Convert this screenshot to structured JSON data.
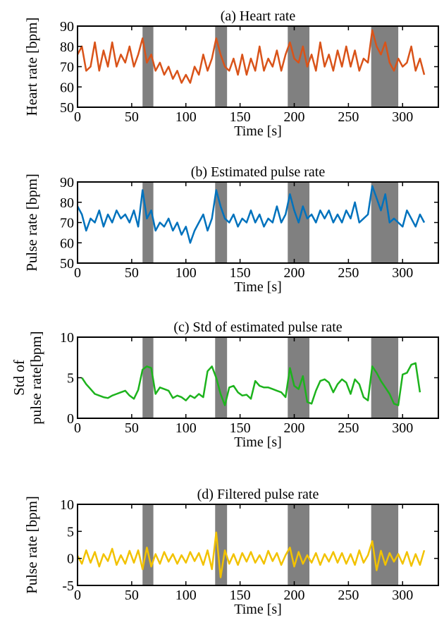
{
  "chart_data": [
    {
      "type": "line",
      "title": "(a) Heart rate",
      "xlabel": "Time [s]",
      "ylabel": "Heart rate [bpm]",
      "xlim": [
        0,
        333
      ],
      "xticks": [
        0,
        50,
        100,
        150,
        200,
        250,
        300
      ],
      "ylim": [
        50,
        90
      ],
      "yticks": [
        50,
        60,
        70,
        80,
        90
      ],
      "shaded_regions": [
        [
          60,
          70
        ],
        [
          127,
          138
        ],
        [
          194,
          214
        ],
        [
          271,
          296
        ]
      ],
      "shade_color": "#808080",
      "x": [
        0,
        4,
        8,
        12,
        16,
        20,
        24,
        28,
        32,
        36,
        40,
        44,
        48,
        52,
        56,
        60,
        64,
        68,
        72,
        76,
        80,
        84,
        88,
        92,
        96,
        100,
        104,
        108,
        112,
        116,
        120,
        124,
        128,
        132,
        136,
        140,
        144,
        148,
        152,
        156,
        160,
        164,
        168,
        172,
        176,
        180,
        184,
        188,
        192,
        196,
        200,
        204,
        208,
        212,
        216,
        220,
        224,
        228,
        232,
        236,
        240,
        244,
        248,
        252,
        256,
        260,
        264,
        268,
        272,
        276,
        280,
        284,
        288,
        292,
        296,
        300,
        304,
        308,
        312,
        316,
        320
      ],
      "series": [
        {
          "color": "#d95319",
          "values": [
            76,
            80,
            68,
            70,
            82,
            68,
            78,
            70,
            82,
            70,
            76,
            72,
            80,
            70,
            76,
            84,
            72,
            76,
            68,
            72,
            66,
            70,
            64,
            68,
            62,
            66,
            62,
            70,
            66,
            76,
            68,
            74,
            84,
            76,
            70,
            68,
            74,
            66,
            76,
            66,
            74,
            68,
            80,
            68,
            74,
            70,
            78,
            68,
            76,
            82,
            74,
            72,
            80,
            70,
            76,
            68,
            82,
            70,
            76,
            68,
            78,
            70,
            80,
            70,
            78,
            68,
            74,
            72,
            88,
            80,
            76,
            82,
            72,
            68,
            74,
            70,
            72,
            80,
            68,
            74,
            66
          ]
        }
      ]
    },
    {
      "type": "line",
      "title": "(b) Estimated pulse rate",
      "xlabel": "Time [s]",
      "ylabel": "Pulse rate [bpm]",
      "xlim": [
        0,
        333
      ],
      "xticks": [
        0,
        50,
        100,
        150,
        200,
        250,
        300
      ],
      "ylim": [
        50,
        90
      ],
      "yticks": [
        50,
        60,
        70,
        80,
        90
      ],
      "shaded_regions": [
        [
          60,
          70
        ],
        [
          127,
          138
        ],
        [
          194,
          214
        ],
        [
          271,
          296
        ]
      ],
      "shade_color": "#808080",
      "x": [
        0,
        4,
        8,
        12,
        16,
        20,
        24,
        28,
        32,
        36,
        40,
        44,
        48,
        52,
        56,
        60,
        64,
        68,
        72,
        76,
        80,
        84,
        88,
        92,
        96,
        100,
        104,
        108,
        112,
        116,
        120,
        124,
        128,
        132,
        136,
        140,
        144,
        148,
        152,
        156,
        160,
        164,
        168,
        172,
        176,
        180,
        184,
        188,
        192,
        196,
        200,
        204,
        208,
        212,
        216,
        220,
        224,
        228,
        232,
        236,
        240,
        244,
        248,
        252,
        256,
        260,
        264,
        268,
        272,
        276,
        280,
        284,
        288,
        292,
        296,
        300,
        304,
        308,
        312,
        316,
        320
      ],
      "series": [
        {
          "color": "#0072bd",
          "values": [
            78,
            74,
            66,
            72,
            70,
            76,
            68,
            74,
            70,
            76,
            72,
            74,
            70,
            76,
            68,
            86,
            72,
            76,
            66,
            70,
            68,
            72,
            66,
            70,
            64,
            68,
            60,
            66,
            70,
            74,
            66,
            72,
            86,
            78,
            72,
            70,
            74,
            68,
            72,
            70,
            76,
            70,
            74,
            68,
            72,
            70,
            78,
            70,
            74,
            84,
            76,
            70,
            78,
            72,
            74,
            70,
            76,
            72,
            76,
            70,
            74,
            70,
            76,
            72,
            80,
            70,
            72,
            74,
            88,
            82,
            76,
            84,
            70,
            72,
            70,
            68,
            76,
            72,
            68,
            74,
            70
          ]
        }
      ]
    },
    {
      "type": "line",
      "title": "(c) Std of estimated pulse rate",
      "xlabel": "Time [s]",
      "ylabel": [
        "Std of",
        "pulse rate[bpm]"
      ],
      "xlim": [
        0,
        333
      ],
      "xticks": [
        0,
        50,
        100,
        150,
        200,
        250,
        300
      ],
      "ylim": [
        0,
        10
      ],
      "yticks": [
        0,
        5,
        10
      ],
      "shaded_regions": [
        [
          60,
          70
        ],
        [
          127,
          138
        ],
        [
          194,
          214
        ],
        [
          271,
          296
        ]
      ],
      "shade_color": "#808080",
      "x": [
        4,
        8,
        12,
        16,
        20,
        24,
        28,
        32,
        36,
        40,
        44,
        48,
        52,
        56,
        60,
        64,
        68,
        72,
        76,
        80,
        84,
        88,
        92,
        96,
        100,
        104,
        108,
        112,
        116,
        120,
        124,
        128,
        132,
        136,
        140,
        144,
        148,
        152,
        156,
        160,
        164,
        168,
        172,
        176,
        180,
        184,
        188,
        192,
        196,
        200,
        204,
        208,
        212,
        216,
        220,
        224,
        228,
        232,
        236,
        240,
        244,
        248,
        252,
        256,
        260,
        264,
        268,
        272,
        276,
        280,
        284,
        288,
        292,
        296,
        300,
        304,
        308,
        312,
        316
      ],
      "series": [
        {
          "color": "#1db31d",
          "values": [
            5.0,
            4.2,
            3.6,
            3.0,
            2.8,
            2.6,
            2.5,
            2.8,
            3.0,
            3.2,
            3.4,
            2.8,
            2.4,
            3.5,
            6.0,
            6.4,
            6.2,
            3.0,
            3.8,
            3.6,
            3.4,
            2.5,
            2.8,
            2.6,
            2.2,
            2.8,
            2.5,
            3.0,
            2.6,
            5.8,
            6.4,
            5.0,
            3.0,
            1.6,
            3.8,
            4.0,
            3.2,
            2.8,
            2.9,
            2.4,
            4.6,
            4.0,
            3.8,
            3.8,
            3.6,
            3.4,
            3.2,
            2.6,
            6.2,
            4.0,
            3.6,
            5.2,
            2.0,
            1.8,
            3.4,
            4.6,
            4.8,
            4.4,
            3.2,
            4.2,
            4.8,
            4.4,
            3.0,
            4.8,
            4.2,
            2.6,
            2.2,
            6.4,
            5.6,
            4.6,
            3.8,
            3.0,
            1.8,
            1.6,
            5.4,
            5.6,
            6.6,
            6.8,
            3.2
          ]
        }
      ]
    },
    {
      "type": "line",
      "title": "(d) Filtered pulse rate",
      "xlabel": "Time [s]",
      "ylabel": "Pulse rate [bpm]",
      "xlim": [
        0,
        333
      ],
      "xticks": [
        0,
        50,
        100,
        150,
        200,
        250,
        300
      ],
      "ylim": [
        -5,
        10
      ],
      "yticks": [
        -5,
        0,
        5,
        10
      ],
      "shaded_regions": [
        [
          60,
          70
        ],
        [
          127,
          138
        ],
        [
          194,
          214
        ],
        [
          271,
          296
        ]
      ],
      "shade_color": "#808080",
      "x": [
        0,
        4,
        8,
        12,
        16,
        20,
        24,
        28,
        32,
        36,
        40,
        44,
        48,
        52,
        56,
        60,
        64,
        68,
        72,
        76,
        80,
        84,
        88,
        92,
        96,
        100,
        104,
        108,
        112,
        116,
        120,
        124,
        128,
        132,
        136,
        140,
        144,
        148,
        152,
        156,
        160,
        164,
        168,
        172,
        176,
        180,
        184,
        188,
        192,
        196,
        200,
        204,
        208,
        212,
        216,
        220,
        224,
        228,
        232,
        236,
        240,
        244,
        248,
        252,
        256,
        260,
        264,
        268,
        272,
        276,
        280,
        284,
        288,
        292,
        296,
        300,
        304,
        308,
        312,
        316,
        320
      ],
      "series": [
        {
          "color": "#f2c200",
          "values": [
            0.5,
            -1.0,
            1.5,
            -0.8,
            1.2,
            -1.5,
            0.8,
            -0.5,
            1.8,
            -1.2,
            0.6,
            -1.0,
            1.4,
            -0.8,
            1.5,
            -2.0,
            2.0,
            -1.5,
            0.8,
            -1.0,
            1.2,
            -0.6,
            0.8,
            -1.0,
            0.6,
            -0.8,
            1.2,
            -0.5,
            1.0,
            -1.2,
            1.5,
            -2.0,
            4.8,
            -3.5,
            1.5,
            -1.0,
            0.8,
            -1.2,
            1.0,
            -0.6,
            1.2,
            -0.8,
            0.6,
            -1.0,
            1.4,
            -0.5,
            1.0,
            -1.2,
            0.6,
            2.0,
            -1.5,
            1.2,
            -1.0,
            0.6,
            -0.8,
            1.0,
            -1.2,
            0.8,
            -0.6,
            1.2,
            -0.8,
            1.0,
            -1.0,
            0.8,
            -1.2,
            1.5,
            -0.8,
            0.6,
            3.2,
            -2.2,
            1.4,
            -1.2,
            1.0,
            -0.6,
            0.8,
            -1.0,
            1.2,
            -1.4,
            0.8,
            -1.2,
            1.5
          ]
        }
      ]
    }
  ]
}
